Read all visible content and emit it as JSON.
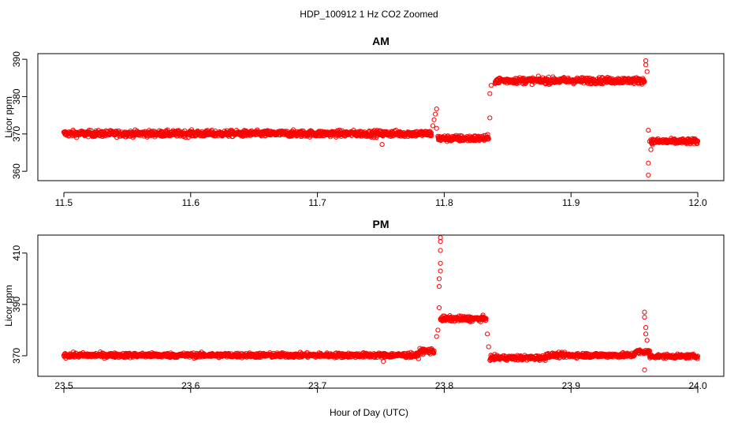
{
  "figure_title": "HDP_100912  1 Hz CO2 Zoomed",
  "x_axis_label": "Hour of Day (UTC)",
  "point_color": "#ff0000",
  "chart_data": [
    {
      "type": "scatter",
      "title": "AM",
      "xlabel": "Hour of Day (UTC)",
      "ylabel": "Licor ppm",
      "xlim": [
        11.5,
        12.0
      ],
      "ylim": [
        357.5,
        391.5
      ],
      "x_ticks": [
        "11.5",
        "11.6",
        "11.7",
        "11.8",
        "11.9",
        "12.0"
      ],
      "y_ticks": [
        "360",
        "370",
        "380",
        "390"
      ],
      "marker": "open-circle",
      "series": [
        {
          "segments": [
            {
              "x": [
                11.5,
                11.79
              ],
              "baseline": 370.1,
              "noise": 0.9
            },
            {
              "x": [
                11.795,
                11.835
              ],
              "baseline": 368.8,
              "noise": 0.9
            },
            {
              "x": [
                11.84,
                11.958
              ],
              "baseline": 384.3,
              "noise": 0.9
            },
            {
              "x": [
                11.963,
                12.0
              ],
              "baseline": 368.0,
              "noise": 0.8
            }
          ],
          "spikes": [
            {
              "x": 11.751,
              "y": 367.2
            },
            {
              "x": 11.791,
              "y": 372.2
            },
            {
              "x": 11.792,
              "y": 373.8
            },
            {
              "x": 11.793,
              "y": 375.3
            },
            {
              "x": 11.794,
              "y": 376.7
            },
            {
              "x": 11.794,
              "y": 371.5
            },
            {
              "x": 11.836,
              "y": 374.3
            },
            {
              "x": 11.836,
              "y": 380.8
            },
            {
              "x": 11.837,
              "y": 383.0
            },
            {
              "x": 11.959,
              "y": 388.5
            },
            {
              "x": 11.959,
              "y": 389.6
            },
            {
              "x": 11.96,
              "y": 386.7
            },
            {
              "x": 11.961,
              "y": 371.0
            },
            {
              "x": 11.961,
              "y": 362.2
            },
            {
              "x": 11.961,
              "y": 359.0
            },
            {
              "x": 11.962,
              "y": 368.0
            },
            {
              "x": 11.963,
              "y": 365.8
            }
          ]
        }
      ]
    },
    {
      "type": "scatter",
      "title": "PM",
      "xlabel": "Hour of Day (UTC)",
      "ylabel": "Licor ppm",
      "xlim": [
        23.5,
        24.0
      ],
      "ylim": [
        362,
        417
      ],
      "x_ticks": [
        "23.5",
        "23.6",
        "23.7",
        "23.8",
        "23.9",
        "24.0"
      ],
      "y_ticks": [
        "370",
        "390",
        "410"
      ],
      "marker": "open-circle",
      "series": [
        {
          "segments": [
            {
              "x": [
                23.5,
                23.78
              ],
              "baseline": 370.2,
              "noise": 1.0
            },
            {
              "x": [
                23.78,
                23.792
              ],
              "baseline": 371.8,
              "noise": 1.2
            },
            {
              "x": [
                23.797,
                23.833
              ],
              "baseline": 384.4,
              "noise": 1.1
            },
            {
              "x": [
                23.836,
                23.88
              ],
              "baseline": 369.2,
              "noise": 1.0
            },
            {
              "x": [
                23.88,
                23.95
              ],
              "baseline": 370.2,
              "noise": 1.0
            },
            {
              "x": [
                23.95,
                23.962
              ],
              "baseline": 371.5,
              "noise": 1.0
            },
            {
              "x": [
                23.962,
                24.0
              ],
              "baseline": 369.8,
              "noise": 0.8
            }
          ],
          "spikes": [
            {
              "x": 23.752,
              "y": 367.8
            },
            {
              "x": 23.794,
              "y": 377.5
            },
            {
              "x": 23.795,
              "y": 380.0
            },
            {
              "x": 23.796,
              "y": 388.7
            },
            {
              "x": 23.796,
              "y": 397.0
            },
            {
              "x": 23.796,
              "y": 400.0
            },
            {
              "x": 23.797,
              "y": 403.0
            },
            {
              "x": 23.797,
              "y": 406.0
            },
            {
              "x": 23.797,
              "y": 411.0
            },
            {
              "x": 23.797,
              "y": 414.5
            },
            {
              "x": 23.797,
              "y": 416.0
            },
            {
              "x": 23.834,
              "y": 378.5
            },
            {
              "x": 23.835,
              "y": 373.5
            },
            {
              "x": 23.958,
              "y": 387.0
            },
            {
              "x": 23.958,
              "y": 385.0
            },
            {
              "x": 23.959,
              "y": 381.0
            },
            {
              "x": 23.959,
              "y": 378.5
            },
            {
              "x": 23.96,
              "y": 376.0
            },
            {
              "x": 23.958,
              "y": 364.5
            }
          ]
        }
      ]
    }
  ]
}
